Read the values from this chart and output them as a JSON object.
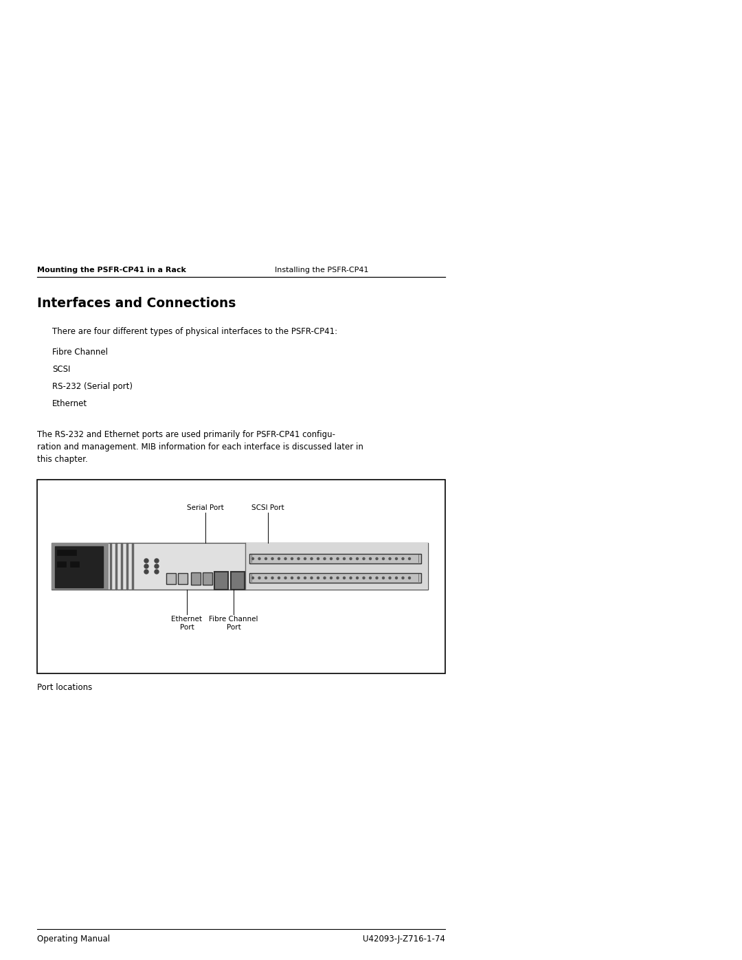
{
  "page_width": 10.8,
  "page_height": 13.97,
  "background_color": "#ffffff",
  "header_left": "Mounting the PSFR-CP41 in a Rack",
  "header_right": "Installing the PSFR-CP41",
  "section_title": "Interfaces and Connections",
  "intro_text": "There are four different types of physical interfaces to the PSFR-CP41:",
  "bullet_items": [
    "Fibre Channel",
    "SCSI",
    "RS-232 (Serial port)",
    "Ethernet"
  ],
  "body_text_line1": "The RS-232 and Ethernet ports are used primarily for PSFR-CP41 configu-",
  "body_text_line2": "ration and management. MIB information for each interface is discussed later in",
  "body_text_line3": "this chapter.",
  "diagram_label_serial": "Serial Port",
  "diagram_label_scsi": "SCSI Port",
  "diagram_label_ethernet": "Ethernet\nPort",
  "diagram_label_fibre": "Fibre Channel\nPort",
  "caption": "Port locations",
  "footer_left": "Operating Manual",
  "footer_right": "U42093-J-Z716-1-74",
  "text_color": "#000000",
  "header_line_color": "#000000",
  "footer_line_color": "#000000",
  "box_border_color": "#000000",
  "device_bg": "#c8c8c8",
  "device_dark": "#888888",
  "device_very_dark": "#222222",
  "device_light": "#e0e0e0",
  "connector_color": "#aaaaaa"
}
